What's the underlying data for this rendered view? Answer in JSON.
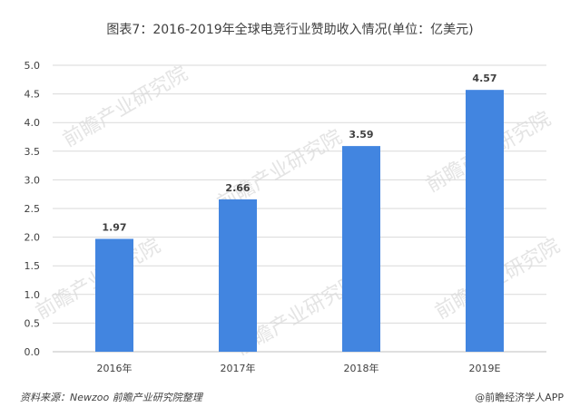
{
  "title": "图表7：2016-2019年全球电竞行业赞助收入情况(单位：亿美元)",
  "source": "资料来源：Newzoo 前瞻产业研究院整理",
  "brand": "@前瞻经济学人APP",
  "watermark": "前瞻产业研究院",
  "colors": {
    "bar": "#4285e0",
    "grid": "#d9d9d9",
    "axis": "#bfbfbf",
    "text": "#404040"
  },
  "chart_data": {
    "type": "bar",
    "title": "图表7：2016-2019年全球电竞行业赞助收入情况(单位：亿美元)",
    "categories": [
      "2016年",
      "2017年",
      "2018年",
      "2019E"
    ],
    "values": [
      1.97,
      2.66,
      3.59,
      4.57
    ],
    "data_labels": [
      "1.97",
      "2.66",
      "3.59",
      "4.57"
    ],
    "yticks": [
      "0.0",
      "0.5",
      "1.0",
      "1.5",
      "2.0",
      "2.5",
      "3.0",
      "3.5",
      "4.0",
      "4.5",
      "5.0"
    ],
    "ylim": [
      0,
      5
    ],
    "xlabel": "",
    "ylabel": "",
    "grid": true,
    "legend": "none"
  }
}
